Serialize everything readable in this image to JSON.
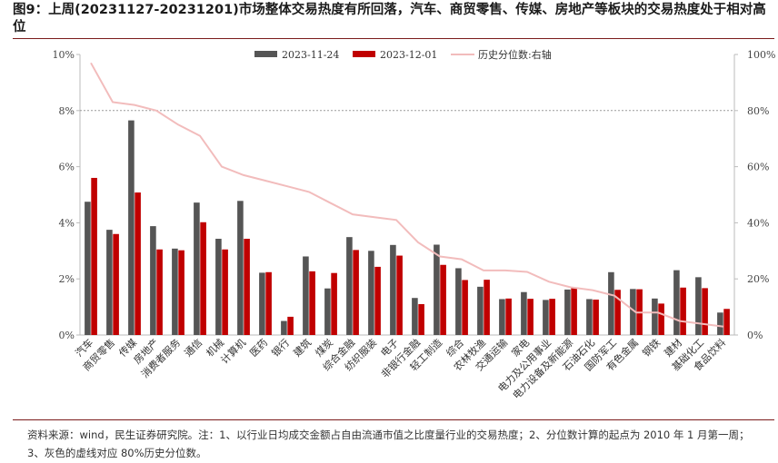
{
  "header": {
    "title": "图9：上周(20231127-20231201)市场整体交易热度有所回落，汽车、商贸零售、传媒、房地产等板块的交易热度处于相对高位"
  },
  "footer": {
    "source_line1": "资料来源：wind，民生证券研究院。注：1、以行业日均成交金额占自由流通市值之比度量行业的交易热度；2、分位数计算的起点为 2010 年 1 月第一周；",
    "source_line2": "3、灰色的虚线对应 80%历史分位数。"
  },
  "colors": {
    "series1": "#555555",
    "series2": "#c00000",
    "percentile_line": "#f2bcbc",
    "reference_line": "#9a9a9a"
  },
  "chart_data": {
    "type": "bar",
    "categories": [
      "汽车",
      "商贸零售",
      "传媒",
      "房地产",
      "消费者服务",
      "通信",
      "机械",
      "计算机",
      "医药",
      "银行",
      "建筑",
      "煤炭",
      "综合金融",
      "纺织服装",
      "电子",
      "非银行金融",
      "轻工制造",
      "综合",
      "农林牧渔",
      "交通运输",
      "家电",
      "电力及公用事业",
      "电力设备及新能源",
      "石油石化",
      "国防军工",
      "有色金属",
      "钢铁",
      "建材",
      "基础化工",
      "食品饮料"
    ],
    "series": [
      {
        "name": "2023-11-24",
        "axis": "left",
        "values": [
          4.75,
          3.75,
          7.65,
          3.88,
          3.08,
          4.72,
          3.43,
          4.78,
          2.22,
          0.5,
          2.8,
          1.66,
          3.49,
          3.0,
          3.21,
          1.32,
          3.22,
          2.38,
          1.72,
          1.28,
          1.53,
          1.25,
          1.62,
          1.28,
          2.24,
          1.64,
          1.3,
          2.31,
          2.06,
          0.8
        ]
      },
      {
        "name": "2023-12-01",
        "axis": "left",
        "values": [
          5.6,
          3.6,
          5.08,
          3.05,
          3.02,
          4.02,
          3.05,
          3.43,
          2.24,
          0.65,
          2.27,
          2.21,
          3.03,
          2.43,
          2.83,
          1.1,
          2.5,
          1.96,
          1.97,
          1.3,
          1.29,
          1.29,
          1.7,
          1.26,
          1.61,
          1.63,
          1.12,
          1.69,
          1.67,
          0.93
        ]
      },
      {
        "name": "历史分位数:右轴",
        "axis": "right",
        "type": "line",
        "values": [
          97,
          83,
          82,
          80,
          75,
          71,
          60,
          57,
          55,
          53,
          51,
          47,
          43,
          42,
          41,
          33,
          28,
          27,
          23,
          23,
          22.5,
          19,
          17,
          16,
          14,
          8,
          8,
          5,
          4,
          3
        ]
      }
    ],
    "ylim_left": [
      0,
      10
    ],
    "ylim_right": [
      0,
      100
    ],
    "yticks_left": [
      "0%",
      "2%",
      "4%",
      "6%",
      "8%",
      "10%"
    ],
    "yticks_right": [
      "0%",
      "20%",
      "40%",
      "60%",
      "80%",
      "100%"
    ],
    "reference_line_right": 80,
    "legend_position": "top-center",
    "grid": false
  }
}
